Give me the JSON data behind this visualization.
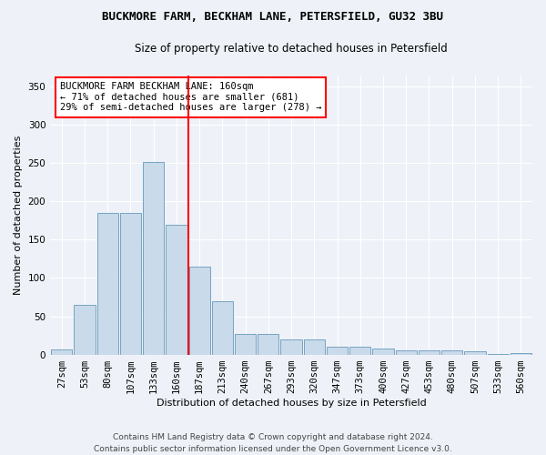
{
  "title1": "BUCKMORE FARM, BECKHAM LANE, PETERSFIELD, GU32 3BU",
  "title2": "Size of property relative to detached houses in Petersfield",
  "xlabel": "Distribution of detached houses by size in Petersfield",
  "ylabel": "Number of detached properties",
  "footer1": "Contains HM Land Registry data © Crown copyright and database right 2024.",
  "footer2": "Contains public sector information licensed under the Open Government Licence v3.0.",
  "annotation_line1": "BUCKMORE FARM BECKHAM LANE: 160sqm",
  "annotation_line2": "← 71% of detached houses are smaller (681)",
  "annotation_line3": "29% of semi-detached houses are larger (278) →",
  "bar_color": "#c9daea",
  "bar_edge_color": "#6699bb",
  "vline_color": "red",
  "categories": [
    "27sqm",
    "53sqm",
    "80sqm",
    "107sqm",
    "133sqm",
    "160sqm",
    "187sqm",
    "213sqm",
    "240sqm",
    "267sqm",
    "293sqm",
    "320sqm",
    "347sqm",
    "373sqm",
    "400sqm",
    "427sqm",
    "453sqm",
    "480sqm",
    "507sqm",
    "533sqm",
    "560sqm"
  ],
  "values": [
    7,
    65,
    185,
    185,
    252,
    170,
    115,
    70,
    27,
    27,
    20,
    20,
    10,
    10,
    8,
    5,
    5,
    5,
    4,
    1,
    2
  ],
  "ylim": [
    0,
    365
  ],
  "yticks": [
    0,
    50,
    100,
    150,
    200,
    250,
    300,
    350
  ],
  "background_color": "#eef2f8",
  "plot_bg_color": "#eef2f8",
  "title_fontsize": 9,
  "subtitle_fontsize": 8.5,
  "ylabel_fontsize": 8,
  "xlabel_fontsize": 8,
  "tick_fontsize": 7.5,
  "footer_fontsize": 6.5,
  "annot_fontsize": 7.5
}
